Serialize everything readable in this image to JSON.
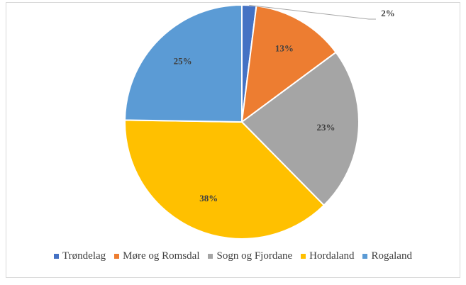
{
  "chart_data": {
    "type": "pie",
    "title": "",
    "categories": [
      "Trøndelag",
      "Møre og Romsdal",
      "Sogn og Fjordane",
      "Hordaland",
      "Rogaland"
    ],
    "values": [
      2,
      13,
      23,
      38,
      25
    ],
    "labels": [
      "2%",
      "13%",
      "23%",
      "38%",
      "25%"
    ],
    "colors": [
      "#4472C4",
      "#ED7D31",
      "#A5A5A5",
      "#FFC000",
      "#5B9BD5"
    ],
    "legend_position": "bottom",
    "start_angle": "top (12 o'clock), clockwise"
  }
}
